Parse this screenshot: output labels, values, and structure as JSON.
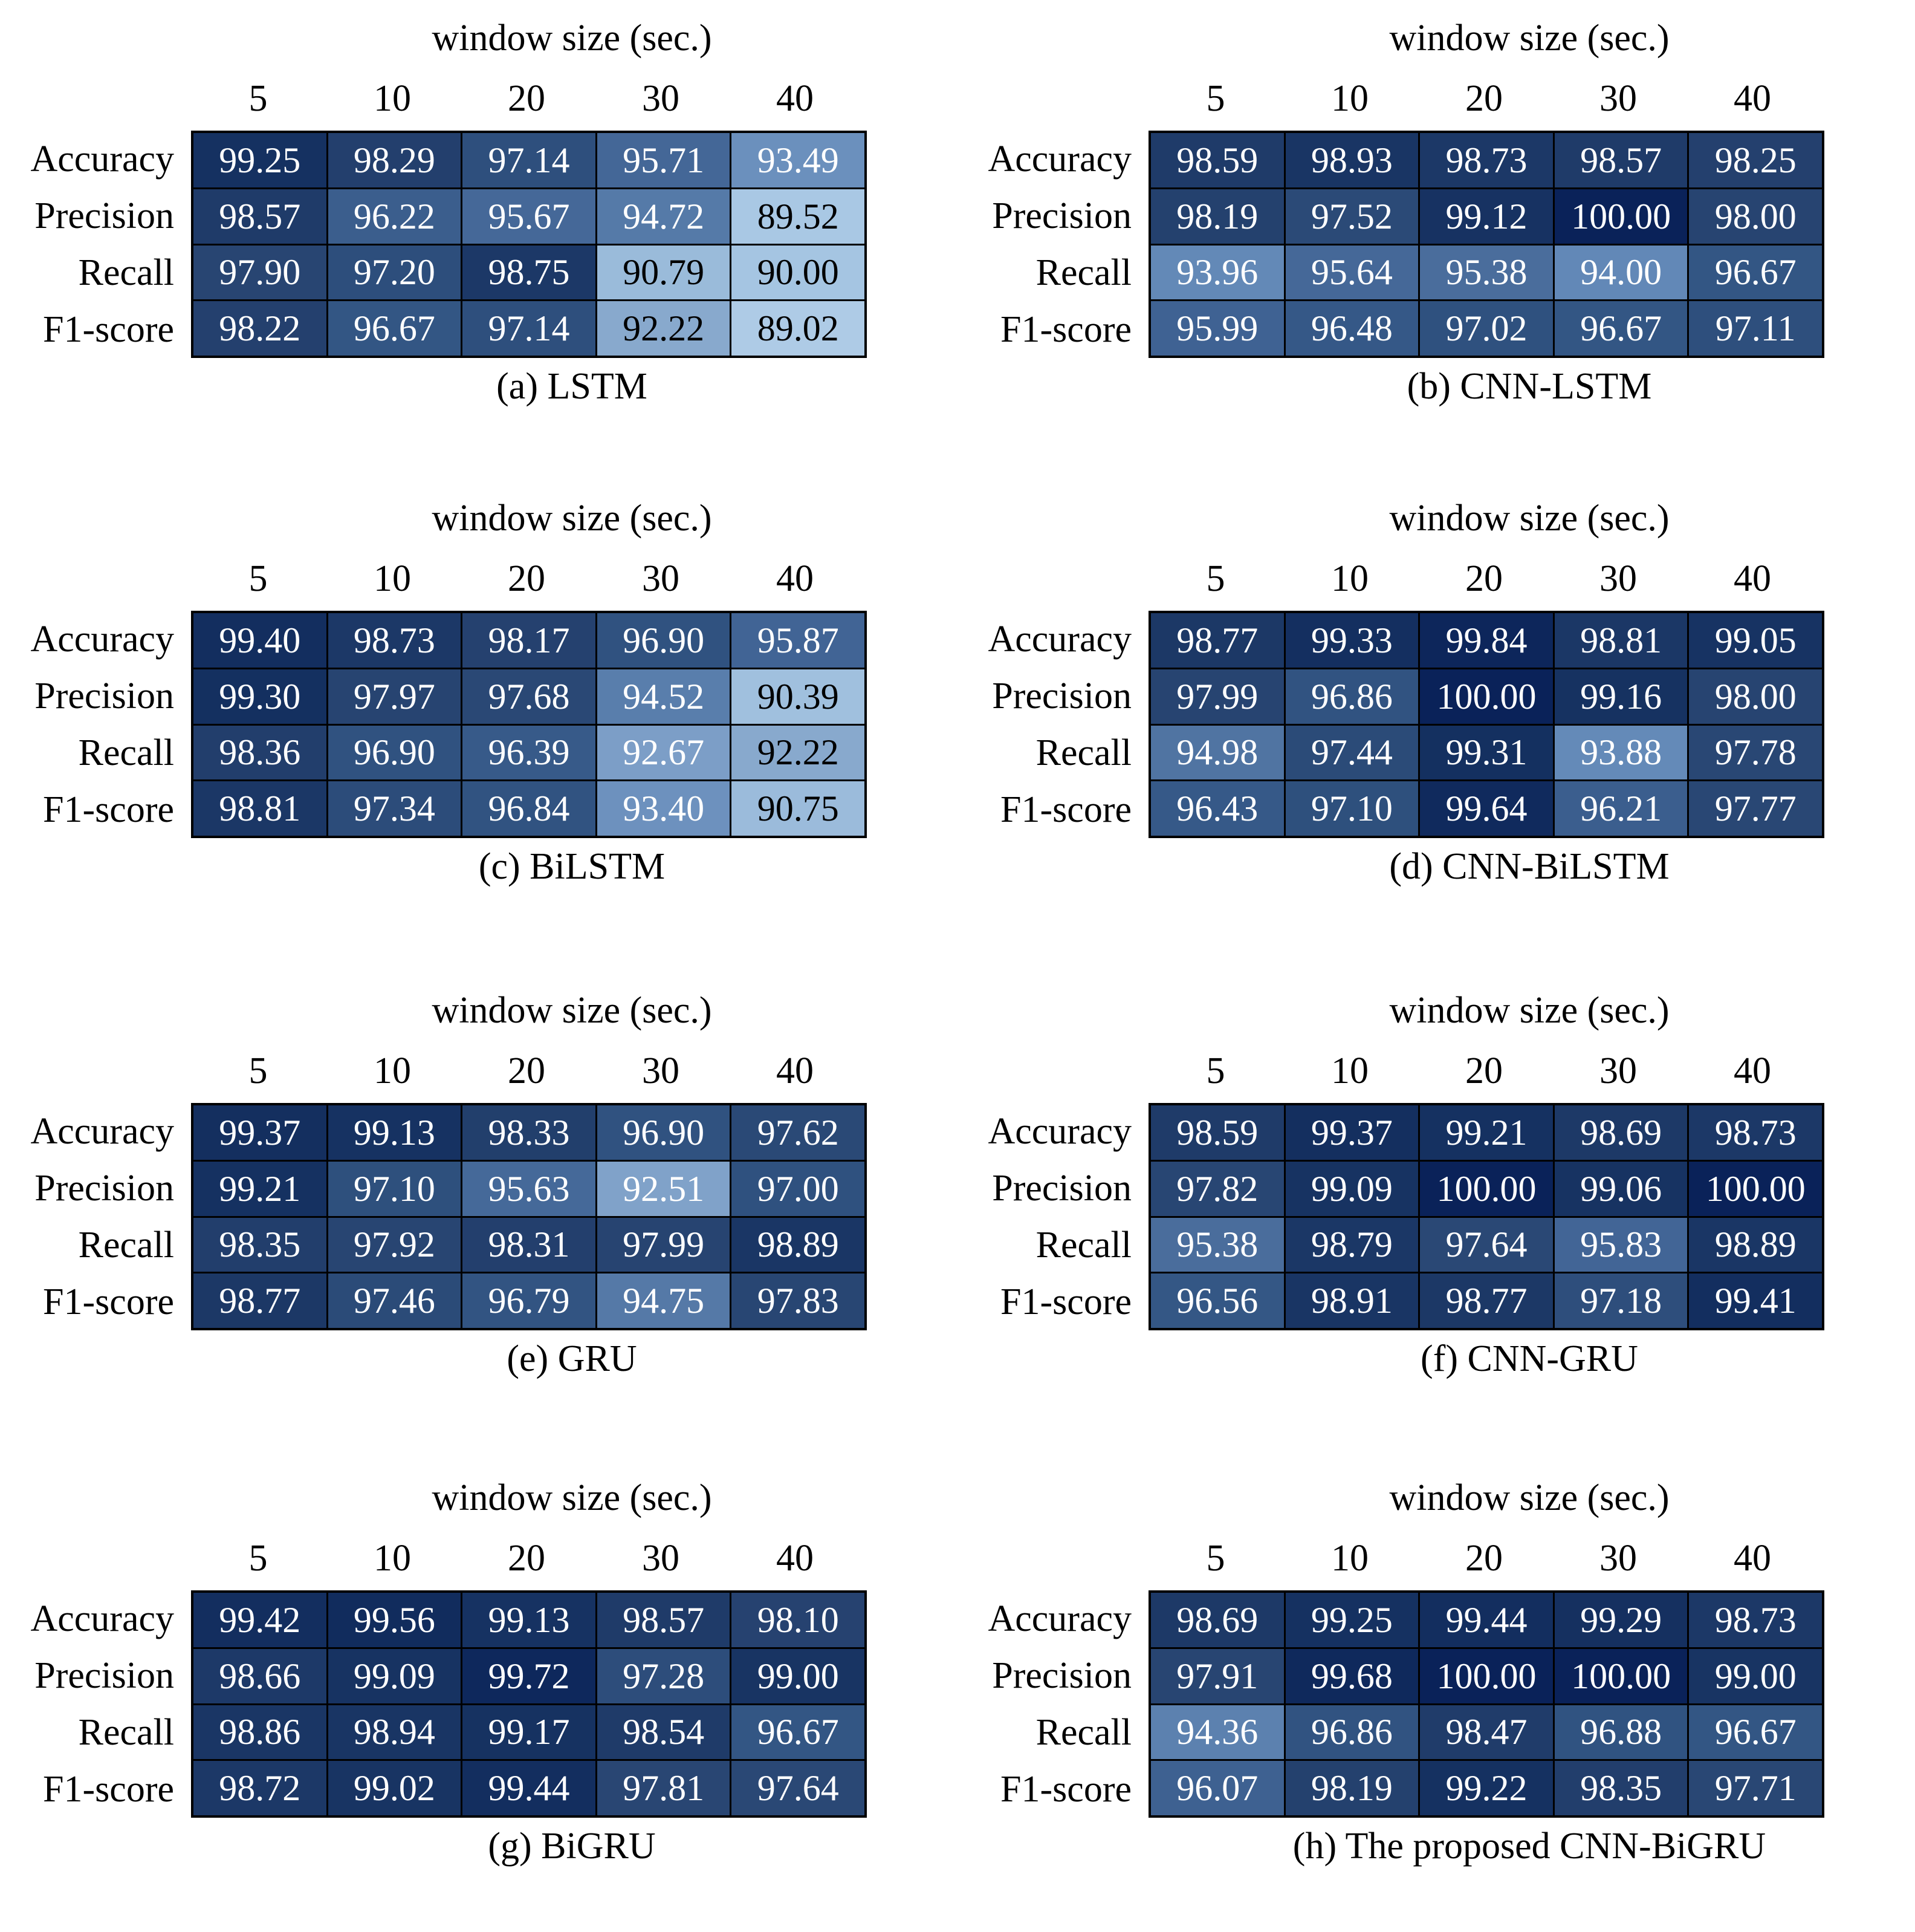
{
  "page": {
    "background": "#ffffff"
  },
  "shared": {
    "title": "window size (sec.)",
    "row_labels": [
      "Accuracy",
      "Precision",
      "Recall",
      "F1-score"
    ],
    "col_labels": [
      "5",
      "10",
      "20",
      "30",
      "40"
    ]
  },
  "style": {
    "text_dark": "#000000",
    "text_light": "#ffffff",
    "grid_line": "#000000",
    "white_text_min": 92.5,
    "color_scale_anchors": [
      [
        89.0,
        "#aecbe6"
      ],
      [
        90.0,
        "#a5c5e2"
      ],
      [
        91.0,
        "#97b8d8"
      ],
      [
        92.2,
        "#88a9cd"
      ],
      [
        93.0,
        "#7497c2"
      ],
      [
        94.0,
        "#6288b7"
      ],
      [
        95.0,
        "#5074a2"
      ],
      [
        96.0,
        "#3f6293"
      ],
      [
        96.5,
        "#355886"
      ],
      [
        97.0,
        "#2f517f"
      ],
      [
        97.5,
        "#2b4a77"
      ],
      [
        98.0,
        "#274471"
      ],
      [
        98.5,
        "#203c6a"
      ],
      [
        99.0,
        "#183463"
      ],
      [
        99.5,
        "#122d5e"
      ],
      [
        100.0,
        "#0a2259"
      ]
    ]
  },
  "chart_data": [
    {
      "type": "heatmap",
      "model": "LSTM",
      "caption": "(a) LSTM",
      "title": "window size (sec.)",
      "columns": [
        5,
        10,
        20,
        30,
        40
      ],
      "rows": [
        "Accuracy",
        "Precision",
        "Recall",
        "F1-score"
      ],
      "values": [
        [
          99.25,
          98.29,
          97.14,
          95.71,
          93.49
        ],
        [
          98.57,
          96.22,
          95.67,
          94.72,
          89.52
        ],
        [
          97.9,
          97.2,
          98.75,
          90.79,
          90.0
        ],
        [
          98.22,
          96.67,
          97.14,
          92.22,
          89.02
        ]
      ]
    },
    {
      "type": "heatmap",
      "model": "CNN-LSTM",
      "caption": "(b) CNN-LSTM",
      "title": "window size (sec.)",
      "columns": [
        5,
        10,
        20,
        30,
        40
      ],
      "rows": [
        "Accuracy",
        "Precision",
        "Recall",
        "F1-score"
      ],
      "values": [
        [
          98.59,
          98.93,
          98.73,
          98.57,
          98.25
        ],
        [
          98.19,
          97.52,
          99.12,
          100.0,
          98.0
        ],
        [
          93.96,
          95.64,
          95.38,
          94.0,
          96.67
        ],
        [
          95.99,
          96.48,
          97.02,
          96.67,
          97.11
        ]
      ]
    },
    {
      "type": "heatmap",
      "model": "BiLSTM",
      "caption": "(c) BiLSTM",
      "title": "window size (sec.)",
      "columns": [
        5,
        10,
        20,
        30,
        40
      ],
      "rows": [
        "Accuracy",
        "Precision",
        "Recall",
        "F1-score"
      ],
      "values": [
        [
          99.4,
          98.73,
          98.17,
          96.9,
          95.87
        ],
        [
          99.3,
          97.97,
          97.68,
          94.52,
          90.39
        ],
        [
          98.36,
          96.9,
          96.39,
          92.67,
          92.22
        ],
        [
          98.81,
          97.34,
          96.84,
          93.4,
          90.75
        ]
      ]
    },
    {
      "type": "heatmap",
      "model": "CNN-BiLSTM",
      "caption": "(d) CNN-BiLSTM",
      "title": "window size (sec.)",
      "columns": [
        5,
        10,
        20,
        30,
        40
      ],
      "rows": [
        "Accuracy",
        "Precision",
        "Recall",
        "F1-score"
      ],
      "values": [
        [
          98.77,
          99.33,
          99.84,
          98.81,
          99.05
        ],
        [
          97.99,
          96.86,
          100.0,
          99.16,
          98.0
        ],
        [
          94.98,
          97.44,
          99.31,
          93.88,
          97.78
        ],
        [
          96.43,
          97.1,
          99.64,
          96.21,
          97.77
        ]
      ]
    },
    {
      "type": "heatmap",
      "model": "GRU",
      "caption": "(e) GRU",
      "title": "window size (sec.)",
      "columns": [
        5,
        10,
        20,
        30,
        40
      ],
      "rows": [
        "Accuracy",
        "Precision",
        "Recall",
        "F1-score"
      ],
      "values": [
        [
          99.37,
          99.13,
          98.33,
          96.9,
          97.62
        ],
        [
          99.21,
          97.1,
          95.63,
          92.51,
          97.0
        ],
        [
          98.35,
          97.92,
          98.31,
          97.99,
          98.89
        ],
        [
          98.77,
          97.46,
          96.79,
          94.75,
          97.83
        ]
      ]
    },
    {
      "type": "heatmap",
      "model": "CNN-GRU",
      "caption": "(f) CNN-GRU",
      "title": "window size (sec.)",
      "columns": [
        5,
        10,
        20,
        30,
        40
      ],
      "rows": [
        "Accuracy",
        "Precision",
        "Recall",
        "F1-score"
      ],
      "values": [
        [
          98.59,
          99.37,
          99.21,
          98.69,
          98.73
        ],
        [
          97.82,
          99.09,
          100.0,
          99.06,
          100.0
        ],
        [
          95.38,
          98.79,
          97.64,
          95.83,
          98.89
        ],
        [
          96.56,
          98.91,
          98.77,
          97.18,
          99.41
        ]
      ]
    },
    {
      "type": "heatmap",
      "model": "BiGRU",
      "caption": "(g) BiGRU",
      "title": "window size (sec.)",
      "columns": [
        5,
        10,
        20,
        30,
        40
      ],
      "rows": [
        "Accuracy",
        "Precision",
        "Recall",
        "F1-score"
      ],
      "values": [
        [
          99.42,
          99.56,
          99.13,
          98.57,
          98.1
        ],
        [
          98.66,
          99.09,
          99.72,
          97.28,
          99.0
        ],
        [
          98.86,
          98.94,
          99.17,
          98.54,
          96.67
        ],
        [
          98.72,
          99.02,
          99.44,
          97.81,
          97.64
        ]
      ]
    },
    {
      "type": "heatmap",
      "model": "The proposed CNN-BiGRU",
      "caption": "(h) The proposed CNN-BiGRU",
      "title": "window size (sec.)",
      "columns": [
        5,
        10,
        20,
        30,
        40
      ],
      "rows": [
        "Accuracy",
        "Precision",
        "Recall",
        "F1-score"
      ],
      "values": [
        [
          98.69,
          99.25,
          99.44,
          99.29,
          98.73
        ],
        [
          97.91,
          99.68,
          100.0,
          100.0,
          99.0
        ],
        [
          94.36,
          96.86,
          98.47,
          96.88,
          96.67
        ],
        [
          96.07,
          98.19,
          99.22,
          98.35,
          97.71
        ]
      ]
    }
  ]
}
